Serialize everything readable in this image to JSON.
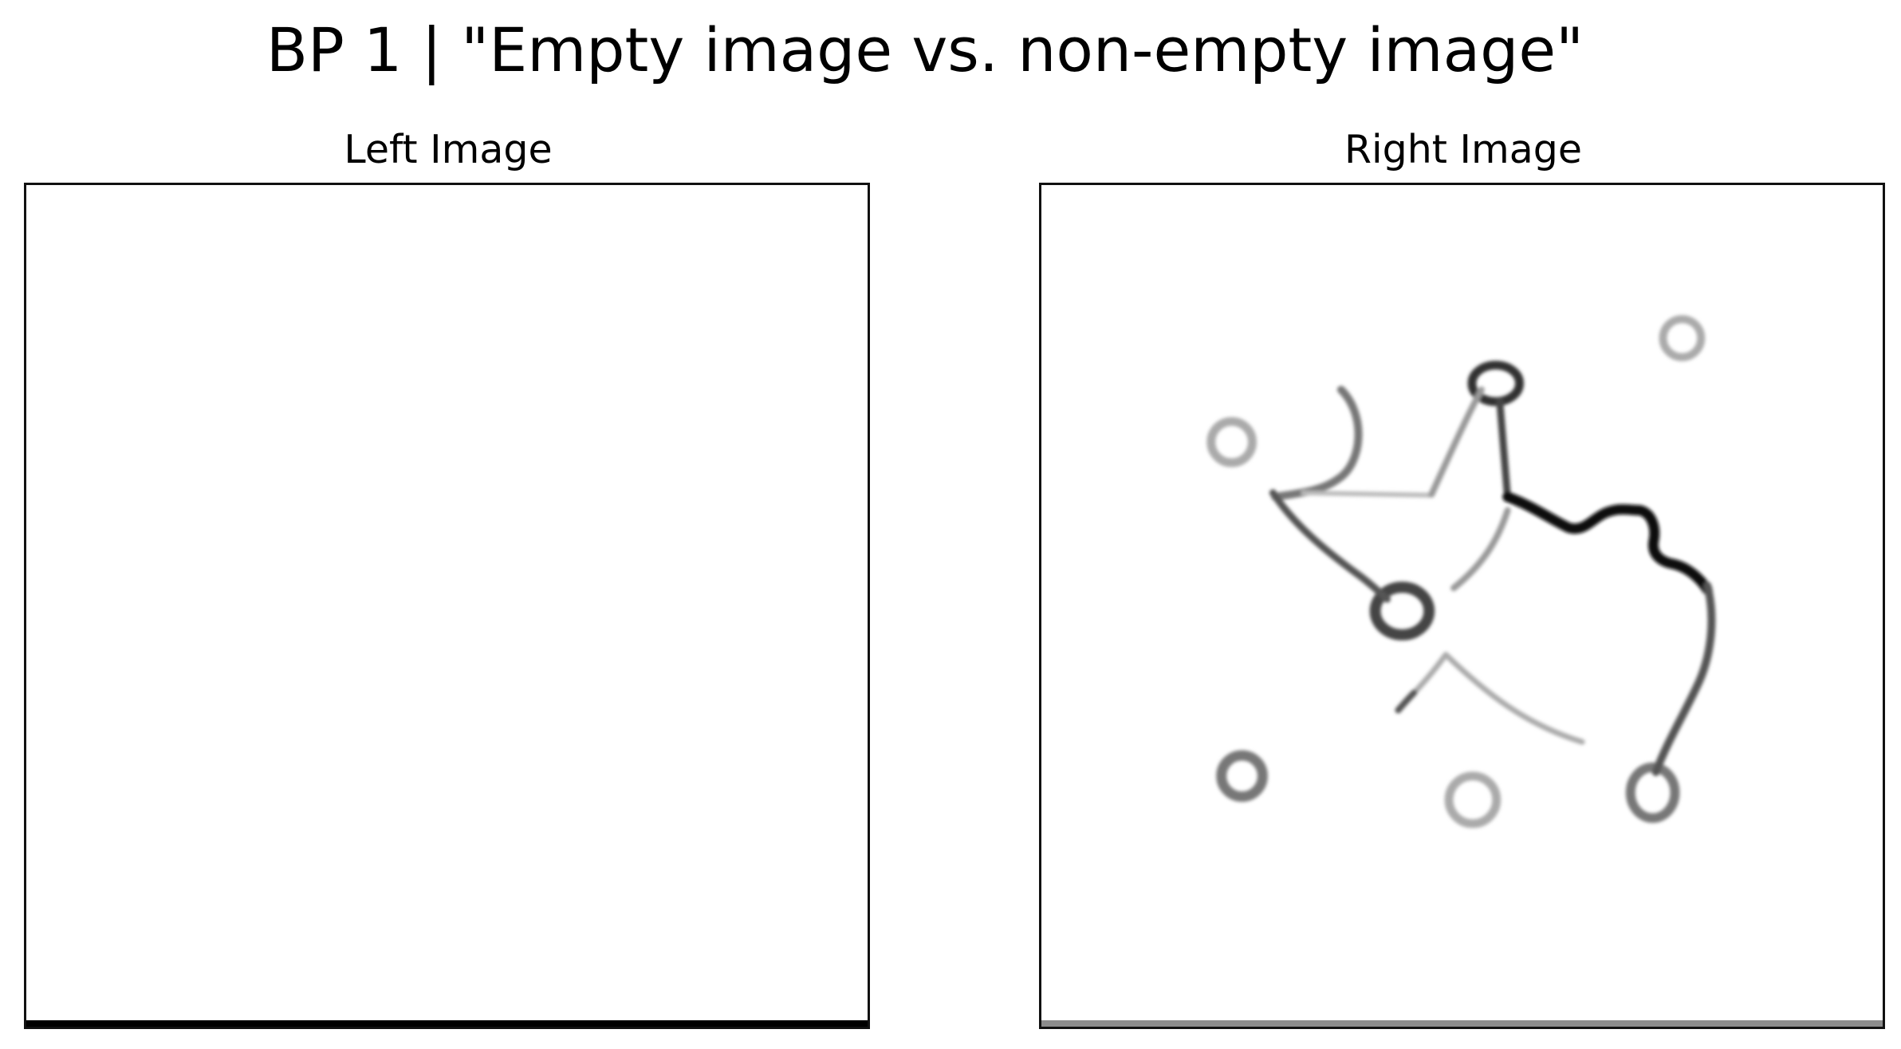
{
  "figure": {
    "title": "BP 1 | \"Empty image vs. non-empty image\""
  },
  "panels": {
    "left": {
      "title": "Left Image",
      "content": "empty"
    },
    "right": {
      "title": "Right Image",
      "content": "non-empty"
    }
  },
  "colors": {
    "stroke_dark": "#111111",
    "stroke_mid": "#555555",
    "stroke_light": "#aaaaaa",
    "left_bottom_band": "#000000",
    "right_bottom_band": "#8c8c8c"
  }
}
